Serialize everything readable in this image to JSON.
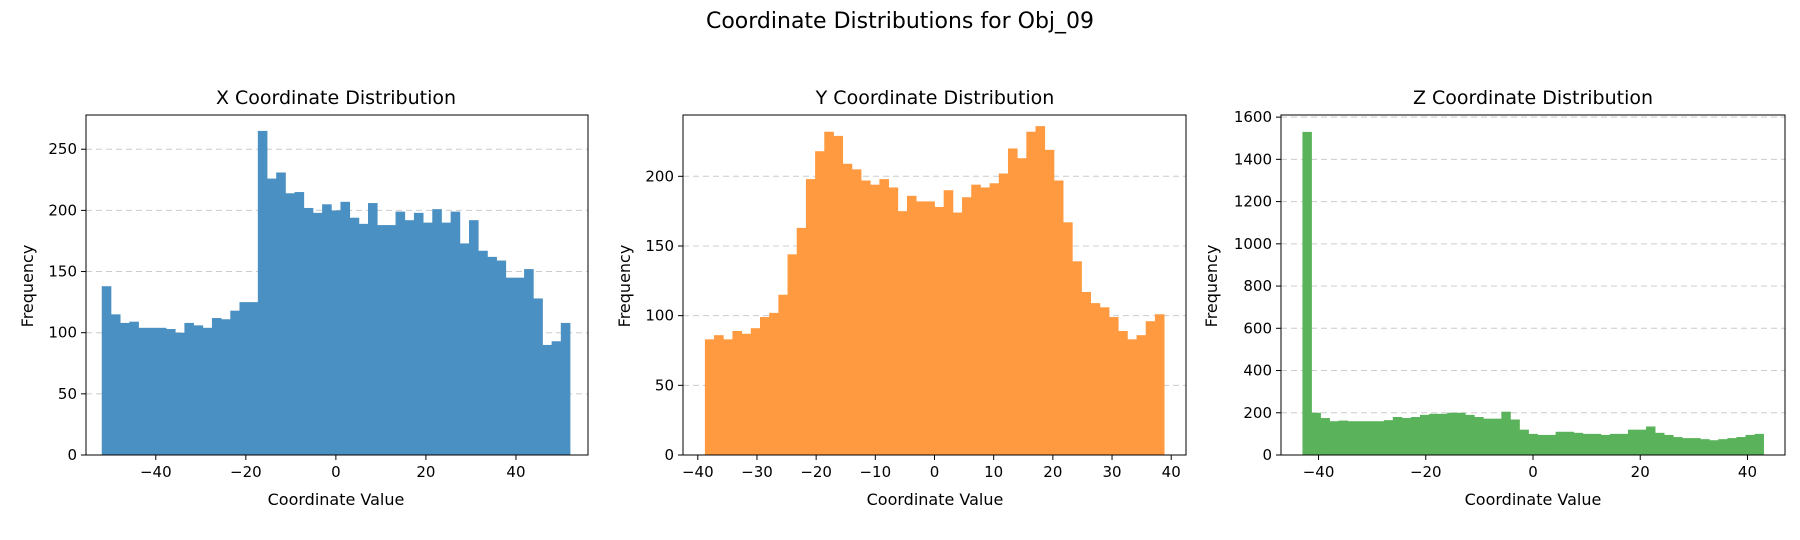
{
  "figure": {
    "suptitle": "Coordinate Distributions for Obj_09"
  },
  "chart_data": [
    {
      "type": "bar",
      "title": "X Coordinate Distribution",
      "xlabel": "Coordinate Value",
      "ylabel": "Frequency",
      "color": "#4a90c2",
      "xlim": [
        -55.5,
        56
      ],
      "ylim": [
        0,
        278
      ],
      "xticks": [
        -40,
        -20,
        0,
        20,
        40
      ],
      "yticks": [
        0,
        50,
        100,
        150,
        200,
        250
      ],
      "grid": "y",
      "bin_range": [
        -52,
        52
      ],
      "values": [
        138,
        115,
        108,
        109,
        104,
        104,
        104,
        103,
        100,
        108,
        106,
        104,
        112,
        111,
        118,
        125,
        125,
        265,
        226,
        231,
        214,
        215,
        202,
        198,
        205,
        200,
        207,
        194,
        189,
        206,
        188,
        188,
        199,
        192,
        198,
        190,
        201,
        190,
        199,
        173,
        192,
        167,
        162,
        159,
        145,
        145,
        152,
        128,
        90,
        93,
        108
      ]
    },
    {
      "type": "bar",
      "title": "Y Coordinate Distribution",
      "xlabel": "Coordinate Value",
      "ylabel": "Frequency",
      "color": "#ff9a40",
      "xlim": [
        -42.5,
        42.5
      ],
      "ylim": [
        0,
        244
      ],
      "xticks": [
        -40,
        -30,
        -20,
        -10,
        0,
        10,
        20,
        30,
        40
      ],
      "yticks": [
        0,
        50,
        100,
        150,
        200
      ],
      "grid": "y",
      "bin_range": [
        -38.8,
        38.8
      ],
      "values": [
        83,
        86,
        83,
        89,
        87,
        91,
        99,
        102,
        115,
        144,
        163,
        198,
        218,
        232,
        229,
        209,
        205,
        197,
        194,
        198,
        192,
        175,
        186,
        182,
        182,
        178,
        190,
        174,
        185,
        194,
        192,
        195,
        202,
        220,
        213,
        232,
        236,
        219,
        197,
        167,
        139,
        117,
        109,
        106,
        99,
        89,
        83,
        86,
        96,
        101
      ]
    },
    {
      "type": "bar",
      "title": "Z Coordinate Distribution",
      "xlabel": "Coordinate Value",
      "ylabel": "Frequency",
      "color": "#5ab35a",
      "xlim": [
        -47,
        47
      ],
      "ylim": [
        0,
        1610
      ],
      "xticks": [
        -40,
        -20,
        0,
        20,
        40
      ],
      "yticks": [
        0,
        200,
        400,
        600,
        800,
        1000,
        1200,
        1400,
        1600
      ],
      "grid": "y",
      "bin_range": [
        -43,
        43
      ],
      "values": [
        1530,
        200,
        175,
        160,
        163,
        160,
        160,
        160,
        160,
        165,
        180,
        175,
        180,
        190,
        195,
        195,
        200,
        200,
        190,
        180,
        172,
        172,
        205,
        168,
        120,
        100,
        95,
        95,
        110,
        110,
        105,
        100,
        100,
        95,
        100,
        100,
        120,
        120,
        135,
        105,
        95,
        85,
        80,
        80,
        75,
        70,
        75,
        80,
        85,
        95,
        100
      ]
    }
  ]
}
